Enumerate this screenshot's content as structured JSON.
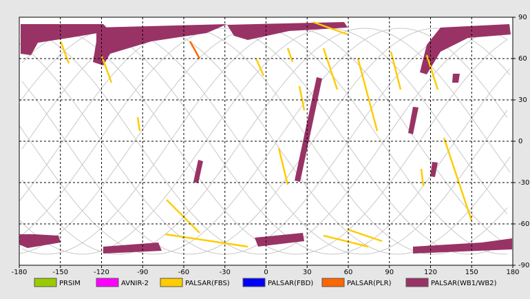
{
  "chart_data": {
    "type": "map",
    "xlim": [
      -180,
      180
    ],
    "ylim": [
      -90,
      90
    ],
    "xticks": [
      -180,
      -150,
      -120,
      -90,
      -60,
      -30,
      0,
      30,
      60,
      90,
      120,
      150,
      180
    ],
    "yticks": [
      90,
      60,
      30,
      0,
      -30,
      -60,
      -90
    ],
    "grid": true,
    "legend": [
      {
        "name": "PRSIM",
        "color": "#99cc00"
      },
      {
        "name": "AVNIR-2",
        "color": "#ff00ff"
      },
      {
        "name": "PALSAR(FBS)",
        "color": "#ffcc00"
      },
      {
        "name": "PALSAR(FBD)",
        "color": "#0000ff"
      },
      {
        "name": "PALSAR(PLR)",
        "color": "#ff6600"
      },
      {
        "name": "PALSAR(WB1/WB2)",
        "color": "#993366"
      }
    ]
  }
}
